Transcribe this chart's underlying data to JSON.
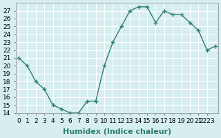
{
  "x": [
    0,
    1,
    2,
    3,
    4,
    5,
    6,
    7,
    8,
    9,
    10,
    11,
    12,
    13,
    14,
    15,
    16,
    17,
    18,
    19,
    20,
    21,
    22,
    23
  ],
  "y": [
    21,
    20,
    18,
    17,
    15,
    14.5,
    14,
    14,
    15.5,
    15.5,
    20,
    23,
    25,
    27,
    27.5,
    27.5,
    25.5,
    27,
    26.5,
    26.5,
    25.5,
    24.5,
    22,
    22.5
  ],
  "line_color": "#2e7d6e",
  "marker": "+",
  "marker_size": 4,
  "bg_color": "#d6eef0",
  "grid_color": "#ffffff",
  "xlabel": "Humidex (Indice chaleur)",
  "ylabel": "",
  "ylim": [
    14,
    28
  ],
  "xlim": [
    0,
    23
  ],
  "yticks": [
    14,
    15,
    16,
    17,
    18,
    19,
    20,
    21,
    22,
    23,
    24,
    25,
    26,
    27
  ],
  "xtick_labels": [
    "0",
    "1",
    "2",
    "3",
    "4",
    "5",
    "6",
    "7",
    "8",
    "9",
    "10",
    "11",
    "12",
    "13",
    "14",
    "15",
    "16",
    "17",
    "18",
    "19",
    "20",
    "21",
    "2223"
  ],
  "title_fontsize": 7,
  "xlabel_fontsize": 8,
  "tick_fontsize": 6.5
}
